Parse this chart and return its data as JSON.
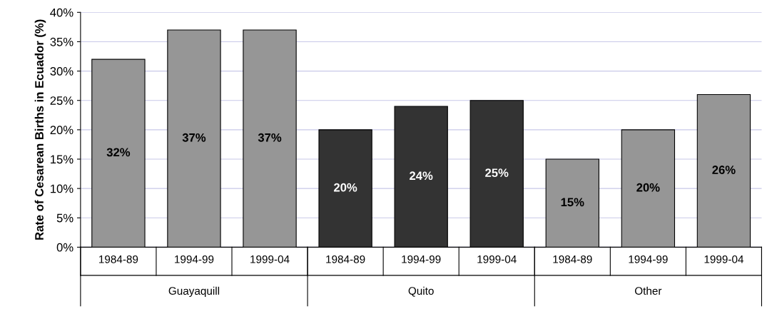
{
  "chart_data": {
    "type": "bar",
    "ylabel": "Rate of Cesarean Births in Ecuador (%)",
    "categories": [
      "1984-89",
      "1994-99",
      "1999-04",
      "1984-89",
      "1994-99",
      "1999-04",
      "1984-89",
      "1994-99",
      "1999-04"
    ],
    "values": [
      32,
      37,
      37,
      20,
      24,
      25,
      15,
      20,
      26
    ],
    "colors": [
      "#969696",
      "#969696",
      "#969696",
      "#333333",
      "#333333",
      "#333333",
      "#969696",
      "#969696",
      "#969696"
    ],
    "value_labels": [
      "32%",
      "37%",
      "37%",
      "20%",
      "24%",
      "25%",
      "15%",
      "20%",
      "26%"
    ],
    "annotations": [
      "Guayaquill",
      "Quito",
      "Other"
    ],
    "ylim": [
      0,
      40
    ],
    "yticks": [
      {
        "value": 0,
        "label": "0%"
      },
      {
        "value": 5,
        "label": "5%"
      },
      {
        "value": 10,
        "label": "10%"
      },
      {
        "value": 15,
        "label": "15%"
      },
      {
        "value": 20,
        "label": "20%"
      },
      {
        "value": 25,
        "label": "25%"
      },
      {
        "value": 30,
        "label": "30%"
      },
      {
        "value": 35,
        "label": "35%"
      },
      {
        "value": 40,
        "label": "40%"
      }
    ],
    "grid": "y"
  }
}
